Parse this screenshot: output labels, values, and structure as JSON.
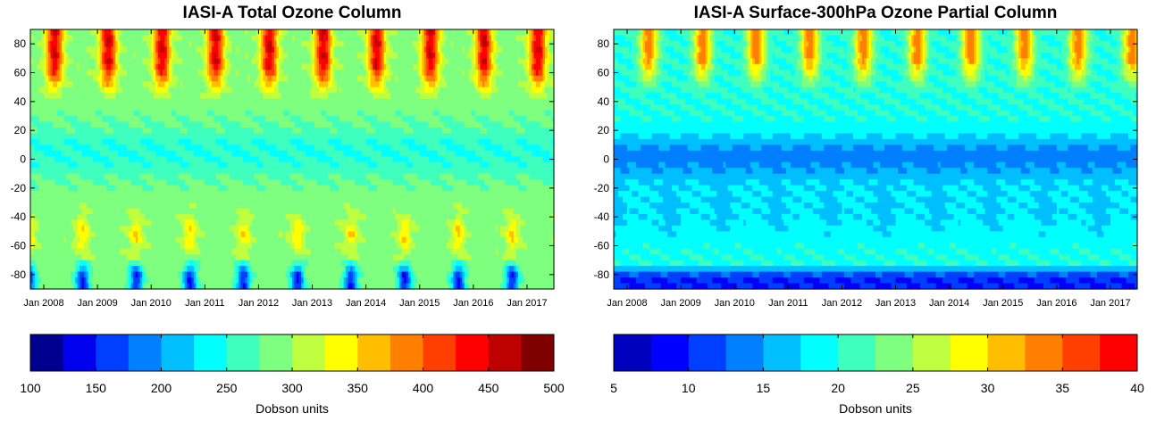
{
  "chart_data": [
    {
      "type": "heatmap",
      "title": "IASI-A Total Ozone Column",
      "x_ticks": [
        "Jan 2008",
        "Jan 2009",
        "Jan 2010",
        "Jan 2011",
        "Jan 2012",
        "Jan 2013",
        "Jan 2014",
        "Jan 2015",
        "Jan 2016",
        "Jan 2017"
      ],
      "xlim": [
        "Oct 2007",
        "Jul 2017"
      ],
      "y_ticks": [
        80,
        60,
        40,
        20,
        0,
        -20,
        -40,
        -60,
        -80
      ],
      "ylim": [
        -90,
        90
      ],
      "colorbar": {
        "ticks": [
          100,
          150,
          200,
          250,
          300,
          350,
          400,
          450,
          500
        ],
        "range": [
          100,
          500
        ],
        "step": 25,
        "label": "Dobson units",
        "colors": [
          "#00008f",
          "#0000ef",
          "#003fff",
          "#007fff",
          "#00bfff",
          "#00ffff",
          "#3fffbf",
          "#7fff7f",
          "#bfff3f",
          "#ffff00",
          "#ffbf00",
          "#ff7f00",
          "#ff3f00",
          "#ff0000",
          "#bf0000",
          "#800000"
        ]
      },
      "features": {
        "background_level": 290,
        "tropical_minimum": 250,
        "arctic_spring_maximum": 450,
        "southern_midlatitude_maximum": 350,
        "antarctic_spring_minimum": 150
      }
    },
    {
      "type": "heatmap",
      "title": "IASI-A Surface-300hPa Ozone Partial Column",
      "x_ticks": [
        "Jan 2008",
        "Jan 2009",
        "Jan 2010",
        "Jan 2011",
        "Jan 2012",
        "Jan 2013",
        "Jan 2014",
        "Jan 2015",
        "Jan 2016",
        "Jan 2017"
      ],
      "xlim": [
        "Oct 2007",
        "Jul 2017"
      ],
      "y_ticks": [
        80,
        60,
        40,
        20,
        0,
        -20,
        -40,
        -60,
        -80
      ],
      "ylim": [
        -90,
        90
      ],
      "colorbar": {
        "ticks": [
          5,
          10,
          15,
          20,
          25,
          30,
          35,
          40
        ],
        "range": [
          5,
          40
        ],
        "step": 2.5,
        "label": "Dobson units",
        "colors": [
          "#0000bf",
          "#0000ff",
          "#003fff",
          "#007fff",
          "#00bfff",
          "#00ffff",
          "#3fffbf",
          "#7fff7f",
          "#bfff3f",
          "#ffff00",
          "#ffbf00",
          "#ff7f00",
          "#ff3f00",
          "#ff0000"
        ]
      },
      "features": {
        "background_level": 20,
        "tropical_minimum": 14,
        "arctic_spring_maximum": 34,
        "southern_midlatitude_level": 16,
        "antarctic_level": 10
      }
    }
  ]
}
